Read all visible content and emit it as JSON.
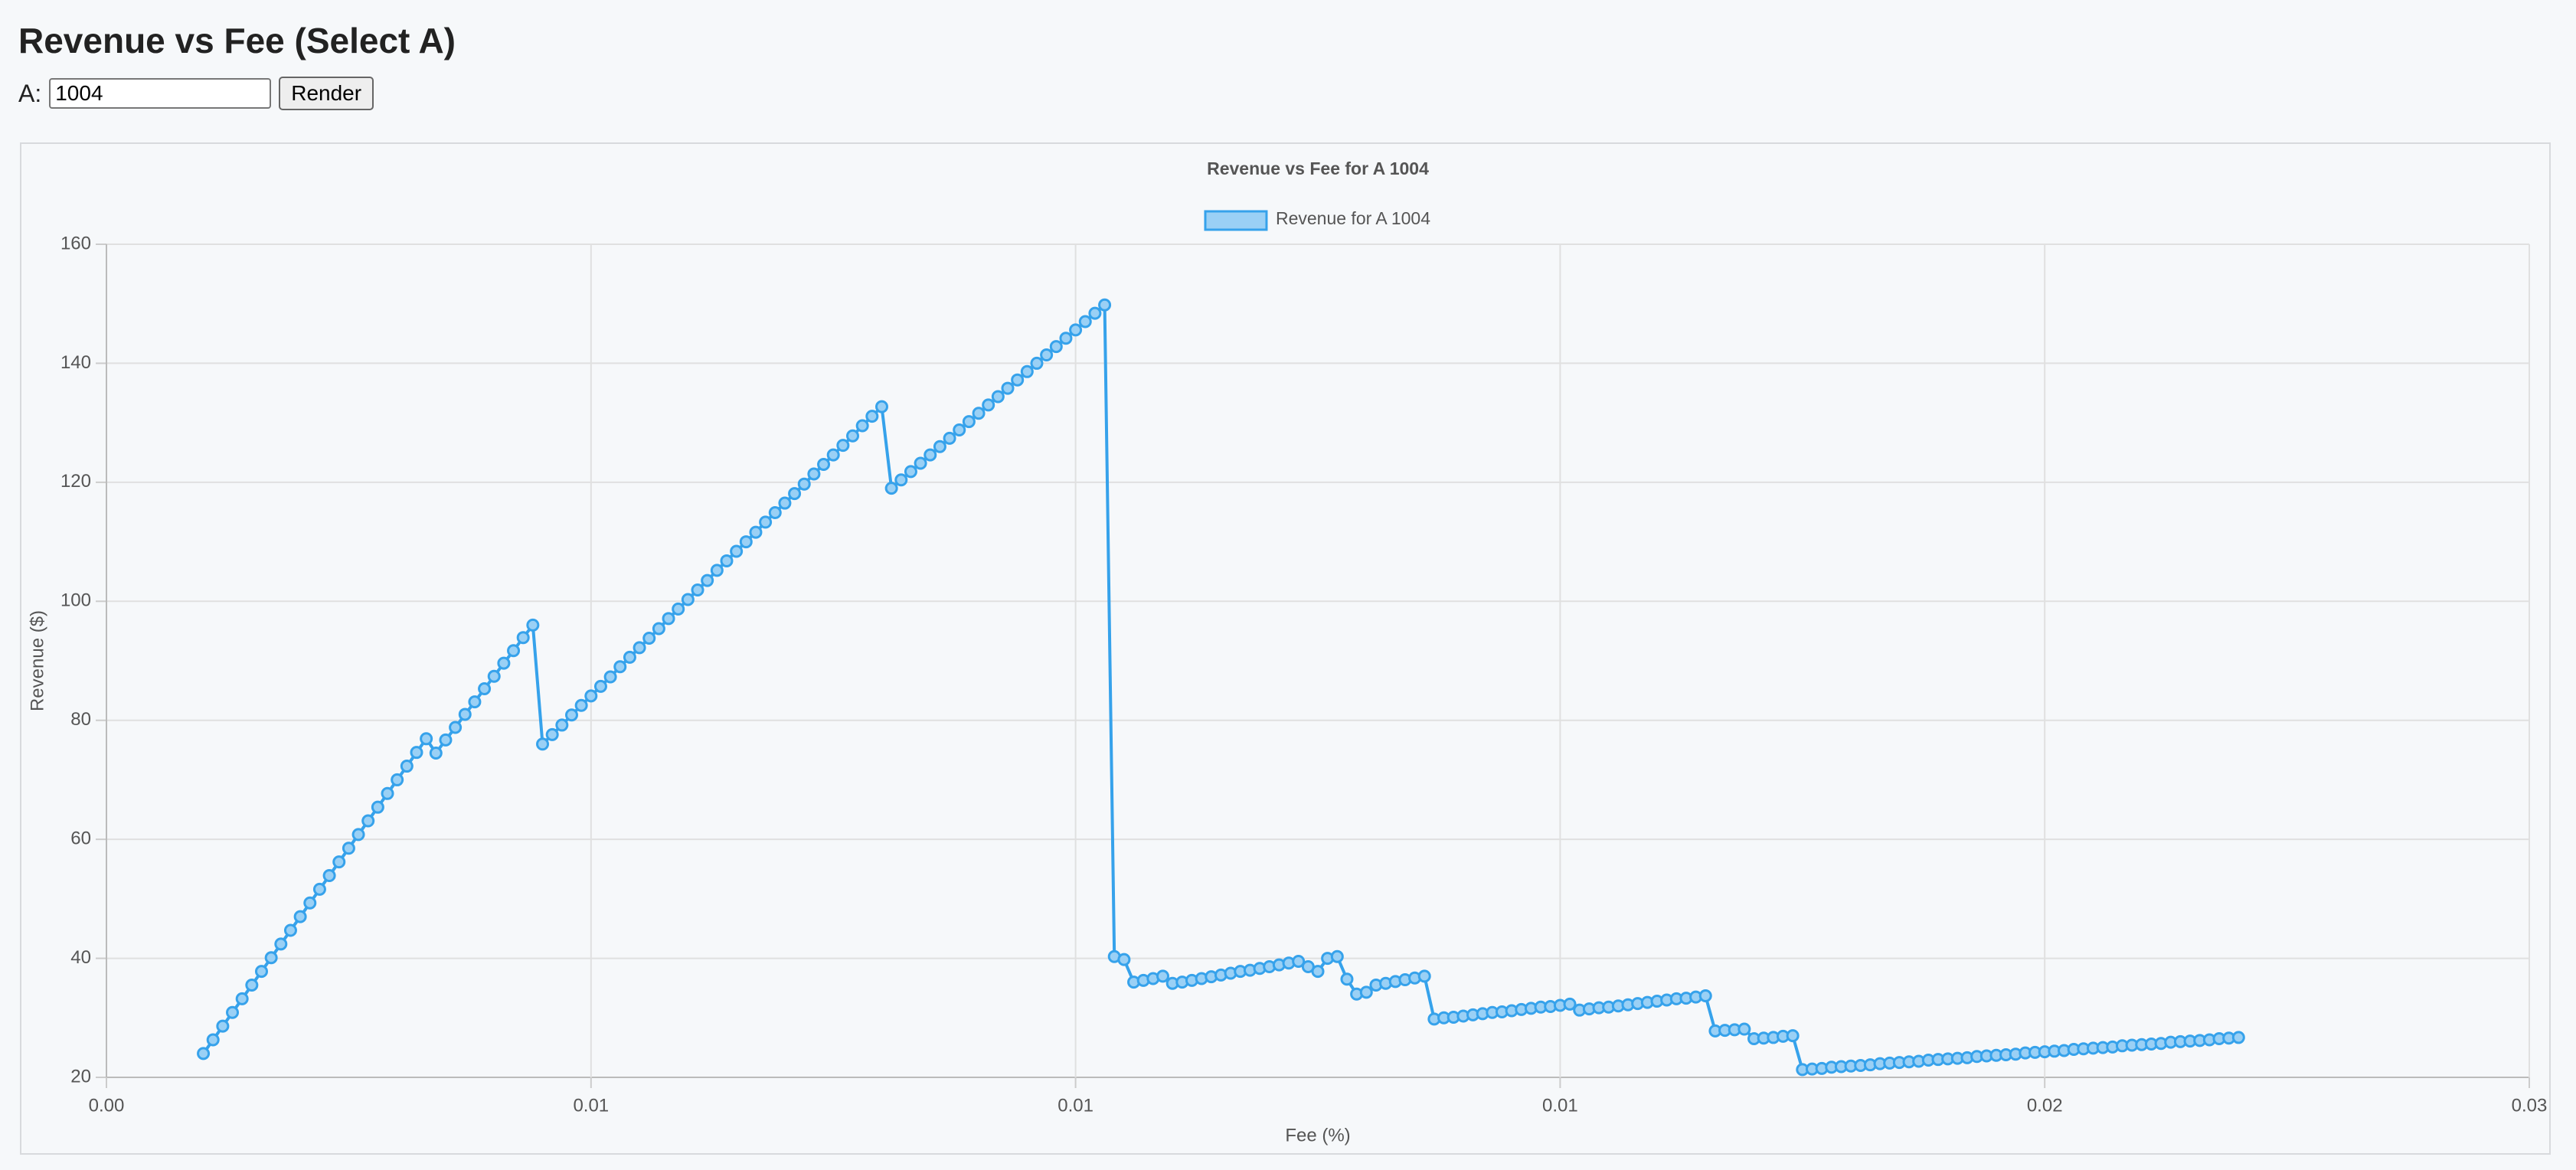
{
  "header": {
    "title": "Revenue vs Fee (Select A)"
  },
  "controls": {
    "label": "A:",
    "input_value": "1004",
    "button": "Render"
  },
  "chart_data": {
    "type": "line",
    "title": "Revenue vs Fee for A 1004",
    "x_label": "Fee (%)",
    "y_label": "Revenue ($)",
    "xlim": [
      0,
      0.025
    ],
    "xticks": [
      {
        "value": 0,
        "label": "0.00"
      },
      {
        "value": 0.005,
        "label": "0.01"
      },
      {
        "value": 0.01,
        "label": "0.01"
      },
      {
        "value": 0.015,
        "label": "0.01"
      },
      0.02,
      {
        "value": 0.025,
        "label": "0.03"
      }
    ],
    "ylim": [
      20,
      160
    ],
    "yticks": [
      20,
      40,
      60,
      80,
      100,
      120,
      140,
      160
    ],
    "grid": true,
    "legend": "top",
    "x": [
      0.001,
      0.0011,
      0.0012,
      0.0013,
      0.0014,
      0.0015,
      0.0016,
      0.0017,
      0.0018,
      0.0019,
      0.002,
      0.0021,
      0.0022,
      0.0023,
      0.0024,
      0.0025,
      0.0026,
      0.0027,
      0.0028,
      0.0029,
      0.003,
      0.0031,
      0.0032,
      0.0033,
      0.0034,
      0.0035,
      0.0036,
      0.0037,
      0.0038,
      0.0039,
      0.004,
      0.0041,
      0.0042,
      0.0043,
      0.0044,
      0.0045,
      0.0046,
      0.0047,
      0.0048,
      0.0049,
      0.005,
      0.0051,
      0.0052,
      0.0053,
      0.0054,
      0.0055,
      0.0056,
      0.0057,
      0.0058,
      0.0059,
      0.006,
      0.0061,
      0.0062,
      0.0063,
      0.0064,
      0.0065,
      0.0066,
      0.0067,
      0.0068,
      0.0069,
      0.007,
      0.0071,
      0.0072,
      0.0073,
      0.0074,
      0.0075,
      0.0076,
      0.0077,
      0.0078,
      0.0079,
      0.008,
      0.0081,
      0.0082,
      0.0083,
      0.0084,
      0.0085,
      0.0086,
      0.0087,
      0.0088,
      0.0089,
      0.009,
      0.0091,
      0.0092,
      0.0093,
      0.0094,
      0.0095,
      0.0096,
      0.0097,
      0.0098,
      0.0099,
      0.01,
      0.0101,
      0.0102,
      0.0103,
      0.0104,
      0.0105,
      0.0106,
      0.0107,
      0.0108,
      0.0109,
      0.011,
      0.0111,
      0.0112,
      0.0113,
      0.0114,
      0.0115,
      0.0116,
      0.0117,
      0.0118,
      0.0119,
      0.012,
      0.0121,
      0.0122,
      0.0123,
      0.0124,
      0.0125,
      0.0126,
      0.0127,
      0.0128,
      0.0129,
      0.013,
      0.0131,
      0.0132,
      0.0133,
      0.0134,
      0.0135,
      0.0136,
      0.0137,
      0.0138,
      0.0139,
      0.014,
      0.0141,
      0.0142,
      0.0143,
      0.0144,
      0.0145,
      0.0146,
      0.0147,
      0.0148,
      0.0149,
      0.015,
      0.0151,
      0.0152,
      0.0153,
      0.0154,
      0.0155,
      0.0156,
      0.0157,
      0.0158,
      0.0159,
      0.016,
      0.0161,
      0.0162,
      0.0163,
      0.0164,
      0.0165,
      0.0166,
      0.0167,
      0.0168,
      0.0169,
      0.017,
      0.0171,
      0.0172,
      0.0173,
      0.0174,
      0.0175,
      0.0176,
      0.0177,
      0.0178,
      0.0179,
      0.018,
      0.0181,
      0.0182,
      0.0183,
      0.0184,
      0.0185,
      0.0186,
      0.0187,
      0.0188,
      0.0189,
      0.019,
      0.0191,
      0.0192,
      0.0193,
      0.0194,
      0.0195,
      0.0196,
      0.0197,
      0.0198,
      0.0199,
      0.02,
      0.0201,
      0.0202,
      0.0203,
      0.0204,
      0.0205,
      0.0206,
      0.0207,
      0.0208,
      0.0209,
      0.021,
      0.0211,
      0.0212,
      0.0213,
      0.0214,
      0.0215,
      0.0216,
      0.0217,
      0.0218,
      0.0219,
      0.022
    ],
    "series": [
      {
        "name": "Revenue for A 1004",
        "color": "#36a2eb",
        "fill": "#9ad0f5",
        "values": [
          24,
          26.3,
          28.6,
          30.9,
          33.2,
          35.5,
          37.8,
          40.1,
          42.4,
          44.7,
          47,
          49.3,
          51.6,
          53.9,
          56.2,
          58.5,
          60.8,
          63.1,
          65.4,
          67.7,
          70,
          72.3,
          74.6,
          76.9,
          74.5,
          76.7,
          78.8,
          81,
          83.1,
          85.3,
          87.4,
          89.6,
          91.7,
          93.9,
          96,
          76,
          77.6,
          79.2,
          80.9,
          82.5,
          84.1,
          85.7,
          87.3,
          89,
          90.6,
          92.2,
          93.8,
          95.4,
          97.1,
          98.7,
          100.3,
          101.9,
          103.5,
          105.2,
          106.8,
          108.4,
          110,
          111.6,
          113.3,
          114.9,
          116.5,
          118.1,
          119.7,
          121.4,
          123,
          124.6,
          126.2,
          127.8,
          129.5,
          131.1,
          132.7,
          119,
          120.4,
          121.8,
          123.2,
          124.6,
          126,
          127.4,
          128.8,
          130.2,
          131.6,
          133,
          134.4,
          135.8,
          137.2,
          138.6,
          140,
          141.4,
          142.8,
          144.2,
          145.6,
          147,
          148.4,
          149.8,
          40.3,
          39.8,
          36,
          36.3,
          36.6,
          37,
          35.8,
          36,
          36.3,
          36.6,
          36.9,
          37.2,
          37.5,
          37.8,
          38,
          38.3,
          38.6,
          38.9,
          39.2,
          39.5,
          38.6,
          37.8,
          40,
          40.3,
          36.5,
          34,
          34.3,
          35.5,
          35.8,
          36.1,
          36.4,
          36.7,
          37,
          29.8,
          30,
          30.1,
          30.3,
          30.5,
          30.7,
          30.9,
          31,
          31.2,
          31.4,
          31.6,
          31.8,
          31.9,
          32.1,
          32.3,
          31.3,
          31.5,
          31.7,
          31.8,
          32,
          32.2,
          32.4,
          32.6,
          32.8,
          33,
          33.2,
          33.3,
          33.5,
          33.7,
          27.8,
          27.9,
          28,
          28.1,
          26.5,
          26.6,
          26.7,
          26.9,
          27,
          21.3,
          21.4,
          21.5,
          21.7,
          21.8,
          21.9,
          22,
          22.1,
          22.3,
          22.4,
          22.5,
          22.6,
          22.7,
          22.9,
          23,
          23.1,
          23.2,
          23.3,
          23.5,
          23.6,
          23.7,
          23.8,
          23.9,
          24.1,
          24.2,
          24.3,
          24.4,
          24.5,
          24.7,
          24.8,
          24.9,
          25,
          25.1,
          25.3,
          25.4,
          25.5,
          25.6,
          25.7,
          25.9,
          26,
          26.1,
          26.2,
          26.3,
          26.5,
          26.6,
          26.7
        ]
      }
    ]
  }
}
